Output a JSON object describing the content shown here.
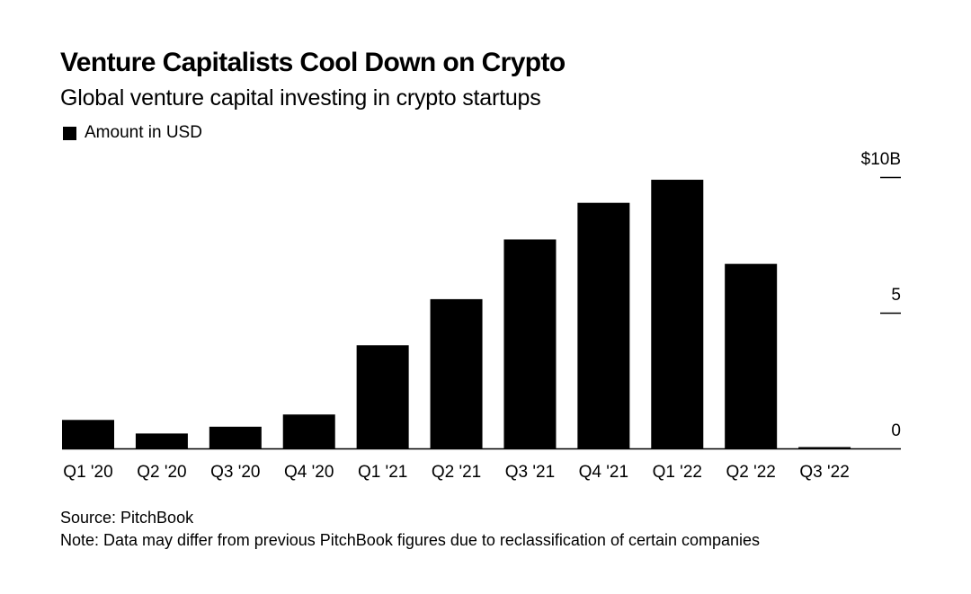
{
  "header": {
    "title": "Venture Capitalists Cool Down on Crypto",
    "subtitle": "Global venture capital investing in crypto startups"
  },
  "legend": {
    "label": "Amount in USD",
    "swatch_color": "#000000"
  },
  "footer": {
    "source": "Source: PitchBook",
    "note": "Note: Data may differ from previous PitchBook figures due to reclassification of certain companies"
  },
  "chart_data": {
    "type": "bar",
    "title": "Venture Capitalists Cool Down on Crypto",
    "subtitle": "Global venture capital investing in crypto startups",
    "xlabel": "",
    "ylabel": "",
    "categories": [
      "Q1 '20",
      "Q2 '20",
      "Q3 '20",
      "Q4 '20",
      "Q1 '21",
      "Q2 '21",
      "Q3 '21",
      "Q4 '21",
      "Q1 '22",
      "Q2 '22",
      "Q3 '22"
    ],
    "series": [
      {
        "name": "Amount in USD",
        "values": [
          1.05,
          0.55,
          0.8,
          1.25,
          3.8,
          5.5,
          7.7,
          9.05,
          9.9,
          6.8,
          0.05
        ],
        "color": "#000000"
      }
    ],
    "ylim": [
      0,
      10
    ],
    "yticks": [
      {
        "value": 10,
        "label": "$10B"
      },
      {
        "value": 5,
        "label": "5"
      },
      {
        "value": 0,
        "label": "0"
      }
    ],
    "y_axis_side": "right",
    "grid": false,
    "legend_position": "top-left"
  }
}
